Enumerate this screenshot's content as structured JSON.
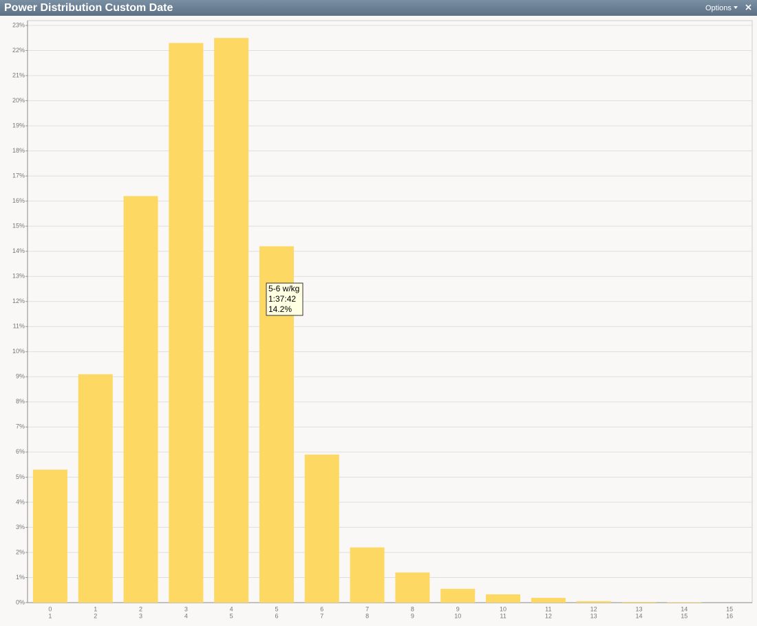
{
  "window": {
    "title": "Power Distribution Custom Date",
    "options": "Options"
  },
  "tooltip": {
    "lines": [
      "5-6 w/kg",
      "1:37:42",
      "14.2%"
    ]
  },
  "chart_data": {
    "type": "bar",
    "categories": [
      [
        "0",
        "1"
      ],
      [
        "1",
        "2"
      ],
      [
        "2",
        "3"
      ],
      [
        "3",
        "4"
      ],
      [
        "4",
        "5"
      ],
      [
        "5",
        "6"
      ],
      [
        "6",
        "7"
      ],
      [
        "7",
        "8"
      ],
      [
        "8",
        "9"
      ],
      [
        "9",
        "10"
      ],
      [
        "10",
        "11"
      ],
      [
        "11",
        "12"
      ],
      [
        "12",
        "13"
      ],
      [
        "13",
        "14"
      ],
      [
        "14",
        "15"
      ],
      [
        "15",
        "16"
      ]
    ],
    "values": [
      5.3,
      9.1,
      16.2,
      22.3,
      22.5,
      14.2,
      5.9,
      2.2,
      1.2,
      0.55,
      0.33,
      0.19,
      0.06,
      0.03,
      0.02,
      0
    ],
    "color": "#fdd863",
    "ylim": [
      0,
      23
    ],
    "yticks": [
      {
        "value": 0,
        "label": "0%"
      },
      {
        "value": 1,
        "label": "1%"
      },
      {
        "value": 2,
        "label": "2%"
      },
      {
        "value": 3,
        "label": "3%"
      },
      {
        "value": 4,
        "label": "4%"
      },
      {
        "value": 5,
        "label": "5%"
      },
      {
        "value": 6,
        "label": "6%"
      },
      {
        "value": 7,
        "label": "7%"
      },
      {
        "value": 8,
        "label": "8%"
      },
      {
        "value": 9,
        "label": "9%"
      },
      {
        "value": 10,
        "label": "10%"
      },
      {
        "value": 11,
        "label": "11%"
      },
      {
        "value": 12,
        "label": "12%"
      },
      {
        "value": 13,
        "label": "13%"
      },
      {
        "value": 14,
        "label": "14%"
      },
      {
        "value": 15,
        "label": "15%"
      },
      {
        "value": 16,
        "label": "16%"
      },
      {
        "value": 17,
        "label": "17%"
      },
      {
        "value": 18,
        "label": "18%"
      },
      {
        "value": 19,
        "label": "19%"
      },
      {
        "value": 20,
        "label": "20%"
      },
      {
        "value": 21,
        "label": "21%"
      },
      {
        "value": 22,
        "label": "22%"
      },
      {
        "value": 23,
        "label": "23%"
      }
    ],
    "grid": true
  }
}
